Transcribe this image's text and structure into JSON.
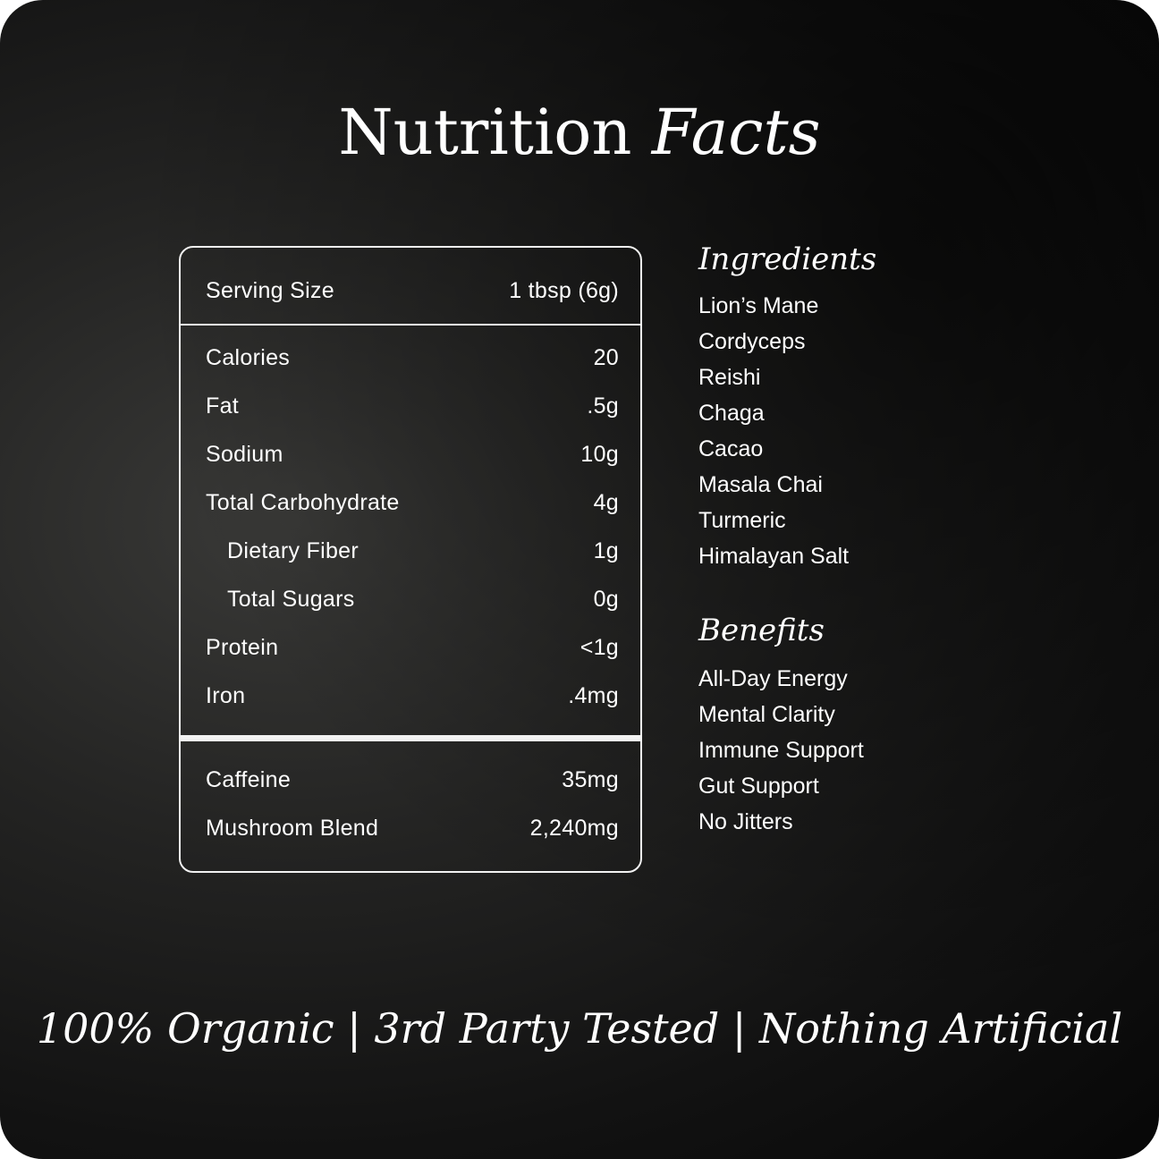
{
  "title": {
    "main": "Nutrition",
    "accent": "Facts"
  },
  "nutrition": {
    "serving": {
      "label": "Serving Size",
      "value": "1 tbsp (6g)"
    },
    "rows": [
      {
        "label": "Calories",
        "value": "20"
      },
      {
        "label": "Fat",
        "value": ".5g"
      },
      {
        "label": "Sodium",
        "value": "10g"
      },
      {
        "label": "Total Carbohydrate",
        "value": "4g"
      },
      {
        "label": "Dietary Fiber",
        "value": "1g"
      },
      {
        "label": "Total Sugars",
        "value": "0g"
      },
      {
        "label": "Protein",
        "value": "<1g"
      },
      {
        "label": "Iron",
        "value": ".4mg"
      }
    ],
    "extra": [
      {
        "label": "Caffeine",
        "value": "35mg"
      },
      {
        "label": "Mushroom Blend",
        "value": "2,240mg"
      }
    ]
  },
  "ingredients": {
    "heading": "Ingredients",
    "items": [
      "Lion’s Mane",
      "Cordyceps",
      "Reishi",
      "Chaga",
      "Cacao",
      "Masala Chai",
      "Turmeric",
      "Himalayan Salt"
    ]
  },
  "benefits": {
    "heading": "Benefits",
    "items": [
      "All-Day Energy",
      "Mental Clarity",
      "Immune Support",
      "Gut Support",
      "No Jitters"
    ]
  },
  "footer": "100% Organic | 3rd Party Tested | Nothing Artificial",
  "colors": {
    "background": "#151515",
    "text": "#ffffff"
  }
}
